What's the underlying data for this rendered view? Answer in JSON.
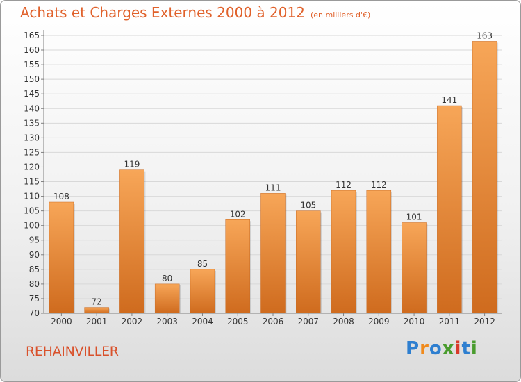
{
  "title": "Achats et Charges Externes 2000 à 2012",
  "subtitle": "(en milliers d'€)",
  "commune": "REHAINVILLER",
  "logo": {
    "text": "Proxiti",
    "colors": [
      "#2e7fd0",
      "#f08a1c",
      "#2e7fd0",
      "#4a9c2e",
      "#d93a2b",
      "#2e7fd0",
      "#4a9c2e"
    ]
  },
  "colors": {
    "title": "#e0612b",
    "bar_top": "#f7a658",
    "bar_bottom": "#cf6b1e",
    "grid": "#d8d8d8",
    "axis": "#808080",
    "text": "#333333"
  },
  "chart_data": {
    "type": "bar",
    "title": "Achats et Charges Externes 2000 à 2012",
    "subtitle": "(en milliers d'€)",
    "xlabel": "",
    "ylabel": "",
    "categories": [
      "2000",
      "2001",
      "2002",
      "2003",
      "2004",
      "2005",
      "2006",
      "2007",
      "2008",
      "2009",
      "2010",
      "2011",
      "2012"
    ],
    "values": [
      108,
      72,
      119,
      80,
      85,
      102,
      111,
      105,
      112,
      112,
      101,
      141,
      163
    ],
    "ylim": [
      70,
      165
    ],
    "yticks": [
      70,
      75,
      80,
      85,
      90,
      95,
      100,
      105,
      110,
      115,
      120,
      125,
      130,
      135,
      140,
      145,
      150,
      155,
      160,
      165
    ],
    "grid": true,
    "legend": "none",
    "data_labels": true
  }
}
